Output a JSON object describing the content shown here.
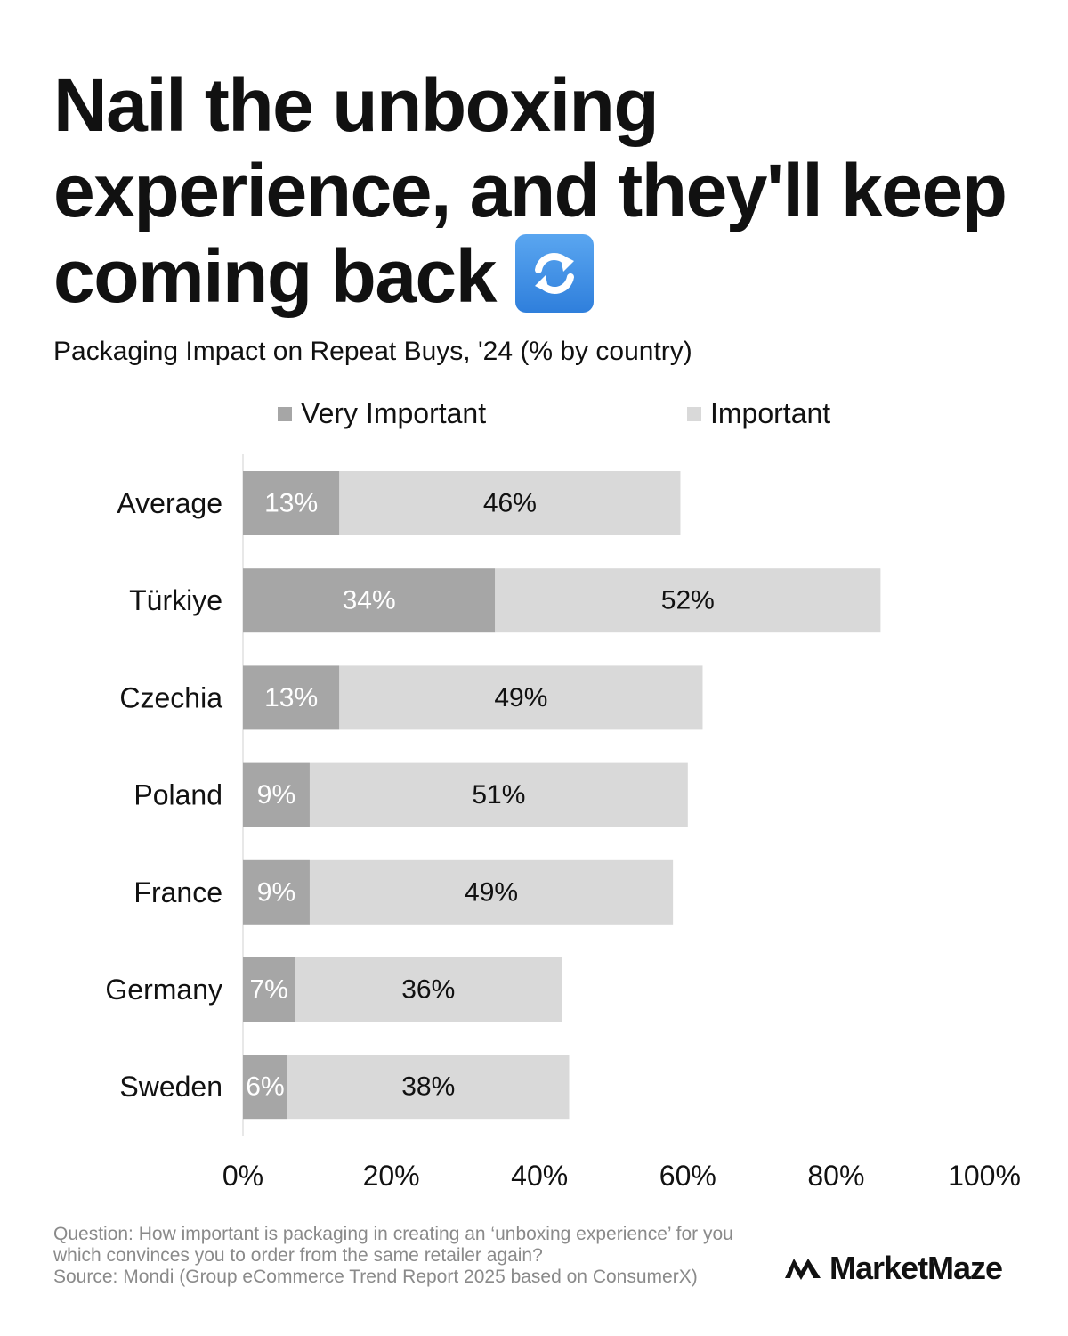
{
  "header": {
    "title": "Nail the unboxing experience, and they'll keep coming back",
    "title_icon": "counterclockwise-arrows-icon",
    "subtitle": "Packaging Impact on Repeat Buys, '24 (% by country)"
  },
  "legend": {
    "very_important": "Very Important",
    "important": "Important"
  },
  "chart_data": {
    "type": "bar",
    "orientation": "horizontal",
    "stacked": true,
    "categories": [
      "Average",
      "Türkiye",
      "Czechia",
      "Poland",
      "France",
      "Germany",
      "Sweden"
    ],
    "series": [
      {
        "name": "Very Important",
        "color": "#a6a6a6",
        "values": [
          13,
          34,
          13,
          9,
          9,
          7,
          6
        ],
        "labels": [
          "13%",
          "34%",
          "13%",
          "9%",
          "9%",
          "7%",
          "6%"
        ]
      },
      {
        "name": "Important",
        "color": "#d9d9d9",
        "values": [
          46,
          52,
          49,
          51,
          49,
          36,
          38
        ],
        "labels": [
          "46%",
          "52%",
          "49%",
          "51%",
          "49%",
          "36%",
          "38%"
        ]
      }
    ],
    "xlim": [
      0,
      100
    ],
    "x_ticks": [
      "0%",
      "20%",
      "40%",
      "60%",
      "80%",
      "100%"
    ],
    "grid": false,
    "legend_position": "top"
  },
  "footer": {
    "question": "Question: How important is packaging in creating an ‘unboxing experience’ for you which convinces you to order from the same retailer again?",
    "source": "Source: Mondi (Group eCommerce Trend Report 2025 based on ConsumerX)",
    "brand": "MarketMaze"
  }
}
